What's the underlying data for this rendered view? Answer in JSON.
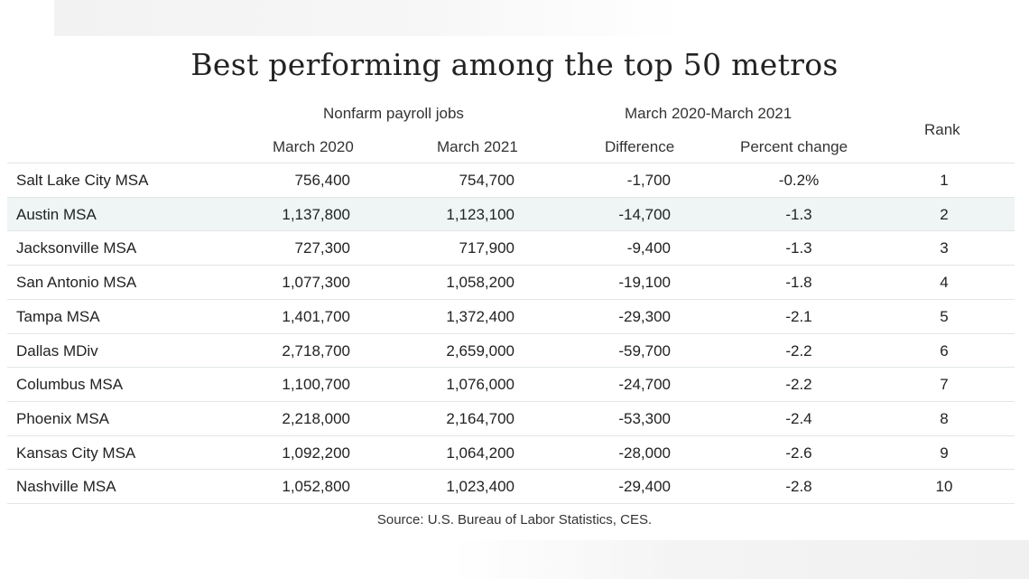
{
  "chart_data": {
    "type": "table",
    "title": "Best performing among the top 50 metros",
    "group_headers": {
      "nonfarm": "Nonfarm payroll jobs",
      "period": "March 2020-March 2021"
    },
    "columns": [
      "March 2020",
      "March 2021",
      "Difference",
      "Percent change",
      "Rank"
    ],
    "rows": [
      {
        "metro": "Salt Lake City MSA",
        "march_2020": "756,400",
        "march_2021": "754,700",
        "difference": "-1,700",
        "percent_change": "-0.2%",
        "rank": "1"
      },
      {
        "metro": "Austin MSA",
        "march_2020": "1,137,800",
        "march_2021": "1,123,100",
        "difference": "-14,700",
        "percent_change": "-1.3",
        "rank": "2"
      },
      {
        "metro": "Jacksonville MSA",
        "march_2020": "727,300",
        "march_2021": "717,900",
        "difference": "-9,400",
        "percent_change": "-1.3",
        "rank": "3"
      },
      {
        "metro": "San Antonio MSA",
        "march_2020": "1,077,300",
        "march_2021": "1,058,200",
        "difference": "-19,100",
        "percent_change": "-1.8",
        "rank": "4"
      },
      {
        "metro": "Tampa MSA",
        "march_2020": "1,401,700",
        "march_2021": "1,372,400",
        "difference": "-29,300",
        "percent_change": "-2.1",
        "rank": "5"
      },
      {
        "metro": "Dallas MDiv",
        "march_2020": "2,718,700",
        "march_2021": "2,659,000",
        "difference": "-59,700",
        "percent_change": "-2.2",
        "rank": "6"
      },
      {
        "metro": "Columbus MSA",
        "march_2020": "1,100,700",
        "march_2021": "1,076,000",
        "difference": "-24,700",
        "percent_change": "-2.2",
        "rank": "7"
      },
      {
        "metro": "Phoenix MSA",
        "march_2020": "2,218,000",
        "march_2021": "2,164,700",
        "difference": "-53,300",
        "percent_change": "-2.4",
        "rank": "8"
      },
      {
        "metro": "Kansas City MSA",
        "march_2020": "1,092,200",
        "march_2021": "1,064,200",
        "difference": "-28,000",
        "percent_change": "-2.6",
        "rank": "9"
      },
      {
        "metro": "Nashville MSA",
        "march_2020": "1,052,800",
        "march_2021": "1,023,400",
        "difference": "-29,400",
        "percent_change": "-2.8",
        "rank": "10"
      }
    ],
    "highlighted_row": "Austin MSA",
    "source": "Source: U.S. Bureau of Labor Statistics, CES."
  },
  "colors": {
    "highlight_row": "#eef5f4",
    "row_divider": "#e2e6e6",
    "text": "#222222"
  }
}
